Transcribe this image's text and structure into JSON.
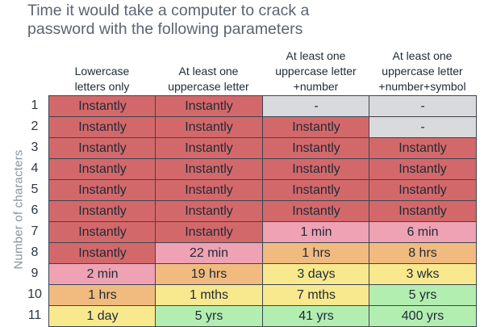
{
  "title": {
    "line1": "Time it would take a computer to crack a",
    "line2": "password with the following parameters"
  },
  "chart_data": {
    "type": "table",
    "ylabel": "Number of characters",
    "columns": [
      {
        "lines": [
          "Lowercase",
          "letters only"
        ]
      },
      {
        "lines": [
          "At least one",
          "uppercase letter"
        ]
      },
      {
        "lines": [
          "At least one",
          "uppercase letter",
          "+number"
        ]
      },
      {
        "lines": [
          "At least one",
          "uppercase letter",
          "+number+symbol"
        ]
      }
    ],
    "rows": [
      {
        "n": "1",
        "cells": [
          "Instantly",
          "Instantly",
          "-",
          "-"
        ]
      },
      {
        "n": "2",
        "cells": [
          "Instantly",
          "Instantly",
          "Instantly",
          "-"
        ]
      },
      {
        "n": "3",
        "cells": [
          "Instantly",
          "Instantly",
          "Instantly",
          "Instantly"
        ]
      },
      {
        "n": "4",
        "cells": [
          "Instantly",
          "Instantly",
          "Instantly",
          "Instantly"
        ]
      },
      {
        "n": "5",
        "cells": [
          "Instantly",
          "Instantly",
          "Instantly",
          "Instantly"
        ]
      },
      {
        "n": "6",
        "cells": [
          "Instantly",
          "Instantly",
          "Instantly",
          "Instantly"
        ]
      },
      {
        "n": "7",
        "cells": [
          "Instantly",
          "Instantly",
          "1 min",
          "6 min"
        ]
      },
      {
        "n": "8",
        "cells": [
          "Instantly",
          "22 min",
          "1 hrs",
          "8 hrs"
        ]
      },
      {
        "n": "9",
        "cells": [
          "2 min",
          "19 hrs",
          "3 days",
          "3 wks"
        ]
      },
      {
        "n": "10",
        "cells": [
          "1 hrs",
          "1 mths",
          "7 mths",
          "5 yrs"
        ]
      },
      {
        "n": "11",
        "cells": [
          "1 day",
          "5 yrs",
          "41 yrs",
          "400 yrs"
        ]
      }
    ],
    "colors": {
      "instantly": "#d3686a",
      "minutes": "#eea2b3",
      "hours": "#f1bb80",
      "days": "#f8e88e",
      "years": "#b3eeb1",
      "none": "#d8dadd"
    },
    "cell_colors": [
      [
        "instantly",
        "instantly",
        "none",
        "none"
      ],
      [
        "instantly",
        "instantly",
        "instantly",
        "none"
      ],
      [
        "instantly",
        "instantly",
        "instantly",
        "instantly"
      ],
      [
        "instantly",
        "instantly",
        "instantly",
        "instantly"
      ],
      [
        "instantly",
        "instantly",
        "instantly",
        "instantly"
      ],
      [
        "instantly",
        "instantly",
        "instantly",
        "instantly"
      ],
      [
        "instantly",
        "instantly",
        "minutes",
        "minutes"
      ],
      [
        "instantly",
        "minutes",
        "hours",
        "hours"
      ],
      [
        "minutes",
        "hours",
        "days",
        "days"
      ],
      [
        "hours",
        "days",
        "days",
        "years"
      ],
      [
        "days",
        "years",
        "years",
        "years"
      ]
    ]
  }
}
